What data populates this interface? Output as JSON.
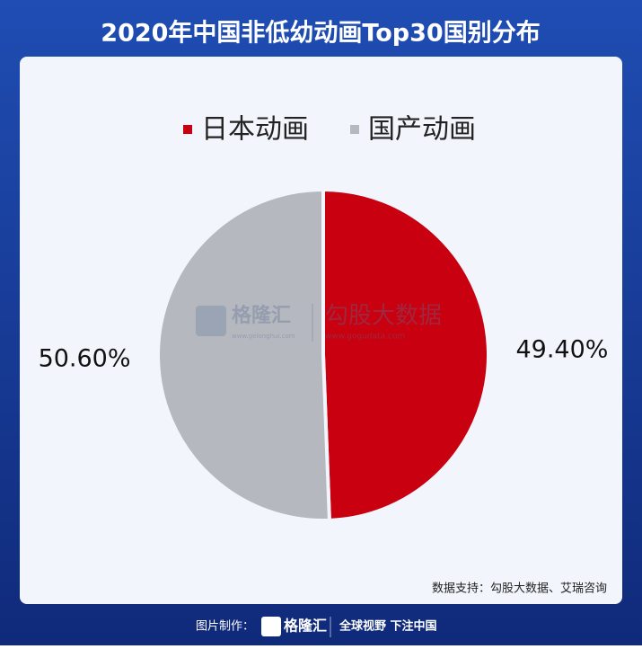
{
  "chart_data": {
    "type": "pie",
    "title": "2020年中国非低幼动画Top30国别分布",
    "categories": [
      "日本动画",
      "国产动画"
    ],
    "values": [
      49.4,
      50.6
    ],
    "value_labels": [
      "49.40%",
      "50.60%"
    ],
    "colors": [
      "#c8000f",
      "#b5b8be"
    ],
    "source": "数据支持：勾股大数据、艾瑞咨询"
  },
  "watermark": {
    "brand": "格隆汇",
    "brand_url": "www.gelonghui.com",
    "partner": "勾股大数据",
    "partner_url": "www.gogudata.com"
  },
  "footer": {
    "made_by": "图片制作：",
    "brand": "格隆汇",
    "slogan": "全球视野 下注中国"
  }
}
